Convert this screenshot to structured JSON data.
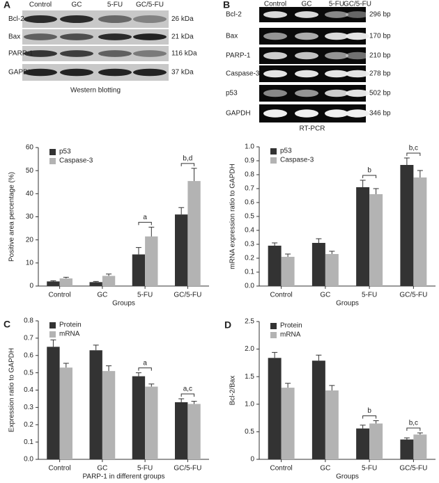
{
  "blots": [
    {
      "letter": "A",
      "columns": [
        "Control",
        "GC",
        "5-FU",
        "GC/5-FU"
      ],
      "rows": [
        {
          "name": "Bcl-2",
          "size": "26 kDa"
        },
        {
          "name": "Bax",
          "size": "21 kDa"
        },
        {
          "name": "PARP-1",
          "size": "116 kDa"
        },
        {
          "name": "GAPDH",
          "size": "37 kDa"
        }
      ],
      "caption": "Western blotting"
    },
    {
      "letter": "B",
      "columns": [
        "Control",
        "GC",
        "5-FU",
        "GC/5-FU"
      ],
      "rows": [
        {
          "name": "Bcl-2",
          "size": "296 bp"
        },
        {
          "name": "Bax",
          "size": "170 bp"
        },
        {
          "name": "PARP-1",
          "size": "210 bp"
        },
        {
          "name": "Caspase-3",
          "size": "278 bp"
        },
        {
          "name": "p53",
          "size": "502 bp"
        },
        {
          "name": "GAPDH",
          "size": "346 bp"
        }
      ],
      "caption": "RT-PCR"
    }
  ],
  "chart_data": [
    {
      "type": "bar",
      "categories": [
        "Control",
        "GC",
        "5-FU",
        "GC/5-FU"
      ],
      "series": [
        {
          "name": "p53",
          "color": "#333333",
          "values": [
            2,
            1.7,
            13.7,
            31
          ],
          "errors": [
            0.3,
            0.3,
            3,
            3
          ]
        },
        {
          "name": "Caspase-3",
          "color": "#b3b3b3",
          "values": [
            3.3,
            4.4,
            21.5,
            45.5
          ],
          "errors": [
            0.5,
            0.8,
            4,
            5.5
          ]
        }
      ],
      "ylim": [
        0,
        60
      ],
      "yticks": [
        0,
        10,
        20,
        30,
        40,
        50,
        60
      ],
      "xlabel": "Groups",
      "ylabel": "Positive area percentage (%)",
      "legend": "top-left",
      "annotations": [
        {
          "text": "a",
          "category": "5-FU"
        },
        {
          "text": "b,d",
          "category": "GC/5-FU"
        }
      ]
    },
    {
      "type": "bar",
      "categories": [
        "Control",
        "GC",
        "5-FU",
        "GC/5-FU"
      ],
      "series": [
        {
          "name": "p53",
          "color": "#333333",
          "values": [
            0.29,
            0.31,
            0.71,
            0.87
          ],
          "errors": [
            0.02,
            0.03,
            0.05,
            0.05
          ]
        },
        {
          "name": "Caspase-3",
          "color": "#b3b3b3",
          "values": [
            0.21,
            0.23,
            0.66,
            0.78
          ],
          "errors": [
            0.02,
            0.02,
            0.04,
            0.05
          ]
        }
      ],
      "ylim": [
        0,
        1
      ],
      "yticks": [
        {
          "value": 0,
          "label": "0.0"
        },
        0.1,
        0.2,
        0.3,
        0.4,
        0.5,
        0.6,
        0.7,
        0.8,
        0.9,
        {
          "value": 1,
          "label": "1.0"
        }
      ],
      "xlabel": "Groups",
      "ylabel": "mRNA expression ratio to GAPDH",
      "legend": "top-left",
      "annotations": [
        {
          "text": "b",
          "category": "5-FU"
        },
        {
          "text": "b,c",
          "category": "GC/5-FU"
        }
      ]
    },
    {
      "type": "bar",
      "panel": "C",
      "categories": [
        "Control",
        "GC",
        "5-FU",
        "GC/5-FU"
      ],
      "series": [
        {
          "name": "Protein",
          "color": "#333333",
          "values": [
            0.65,
            0.63,
            0.48,
            0.33
          ],
          "errors": [
            0.04,
            0.03,
            0.02,
            0.02
          ]
        },
        {
          "name": "mRNA",
          "color": "#b3b3b3",
          "values": [
            0.53,
            0.51,
            0.42,
            0.32
          ],
          "errors": [
            0.025,
            0.03,
            0.015,
            0.015
          ]
        }
      ],
      "ylim": [
        0,
        0.8
      ],
      "yticks": [
        {
          "value": 0,
          "label": "0.0"
        },
        0.1,
        0.2,
        0.3,
        0.4,
        0.5,
        0.6,
        0.7,
        0.8
      ],
      "xlabel": "PARP-1 in different groups",
      "ylabel": "Expression ratio to GAPDH",
      "legend": "top-left",
      "annotations": [
        {
          "text": "a",
          "category": "5-FU"
        },
        {
          "text": "a,c",
          "category": "GC/5-FU"
        }
      ]
    },
    {
      "type": "bar",
      "panel": "D",
      "categories": [
        "Control",
        "GC",
        "5-FU",
        "GC/5-FU"
      ],
      "series": [
        {
          "name": "Protein",
          "color": "#333333",
          "values": [
            1.84,
            1.79,
            0.56,
            0.36
          ],
          "errors": [
            0.1,
            0.1,
            0.06,
            0.03
          ]
        },
        {
          "name": "mRNA",
          "color": "#b3b3b3",
          "values": [
            1.3,
            1.25,
            0.65,
            0.45
          ],
          "errors": [
            0.08,
            0.09,
            0.05,
            0.03
          ]
        }
      ],
      "ylim": [
        0,
        2.5
      ],
      "yticks": [
        0,
        0.5,
        {
          "value": 1,
          "label": "1.0"
        },
        1.5,
        {
          "value": 2,
          "label": "2.0"
        },
        2.5
      ],
      "xlabel": "Groups",
      "ylabel": "Bcl-2/Bax",
      "legend": "top-left",
      "annotations": [
        {
          "text": "b",
          "category": "5-FU"
        },
        {
          "text": "b,c",
          "category": "GC/5-FU"
        }
      ]
    }
  ]
}
